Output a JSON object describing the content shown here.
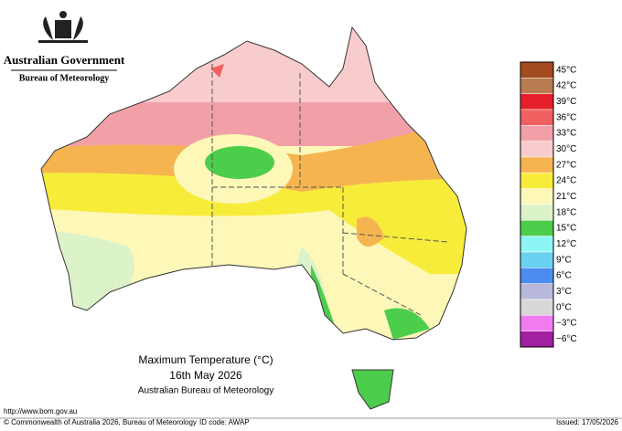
{
  "header": {
    "government": "Australian Government",
    "agency": "Bureau of Meteorology"
  },
  "map": {
    "title": "Maximum Temperature (°C)",
    "date": "16th May 2026",
    "source": "Australian Bureau of Meteorology"
  },
  "legend": [
    {
      "label": "45°C",
      "color": "#a34a20"
    },
    {
      "label": "42°C",
      "color": "#b87c50"
    },
    {
      "label": "39°C",
      "color": "#e5202a"
    },
    {
      "label": "36°C",
      "color": "#f06060"
    },
    {
      "label": "33°C",
      "color": "#f2a0a8"
    },
    {
      "label": "30°C",
      "color": "#f8cccc"
    },
    {
      "label": "27°C",
      "color": "#f5b450"
    },
    {
      "label": "24°C",
      "color": "#f7ec3a"
    },
    {
      "label": "21°C",
      "color": "#fdf7b8"
    },
    {
      "label": "18°C",
      "color": "#dcf2c8"
    },
    {
      "label": "15°C",
      "color": "#4ccd4c"
    },
    {
      "label": "12°C",
      "color": "#8ef5f5"
    },
    {
      "label": "9°C",
      "color": "#6ad2f0"
    },
    {
      "label": "6°C",
      "color": "#4c8cf0"
    },
    {
      "label": "3°C",
      "color": "#b8b8dc"
    },
    {
      "label": "0°C",
      "color": "#d8d8d8"
    },
    {
      "label": "−3°C",
      "color": "#f07cf0"
    },
    {
      "label": "−6°C",
      "color": "#a020a0"
    }
  ],
  "footer": {
    "url": "http://www.bom.gov.au",
    "copyright": "© Commonwealth of Australia 2026, Bureau of Meteorology",
    "id_code": "ID code: AWAP",
    "issued": "Issued: 17/05/2026"
  }
}
